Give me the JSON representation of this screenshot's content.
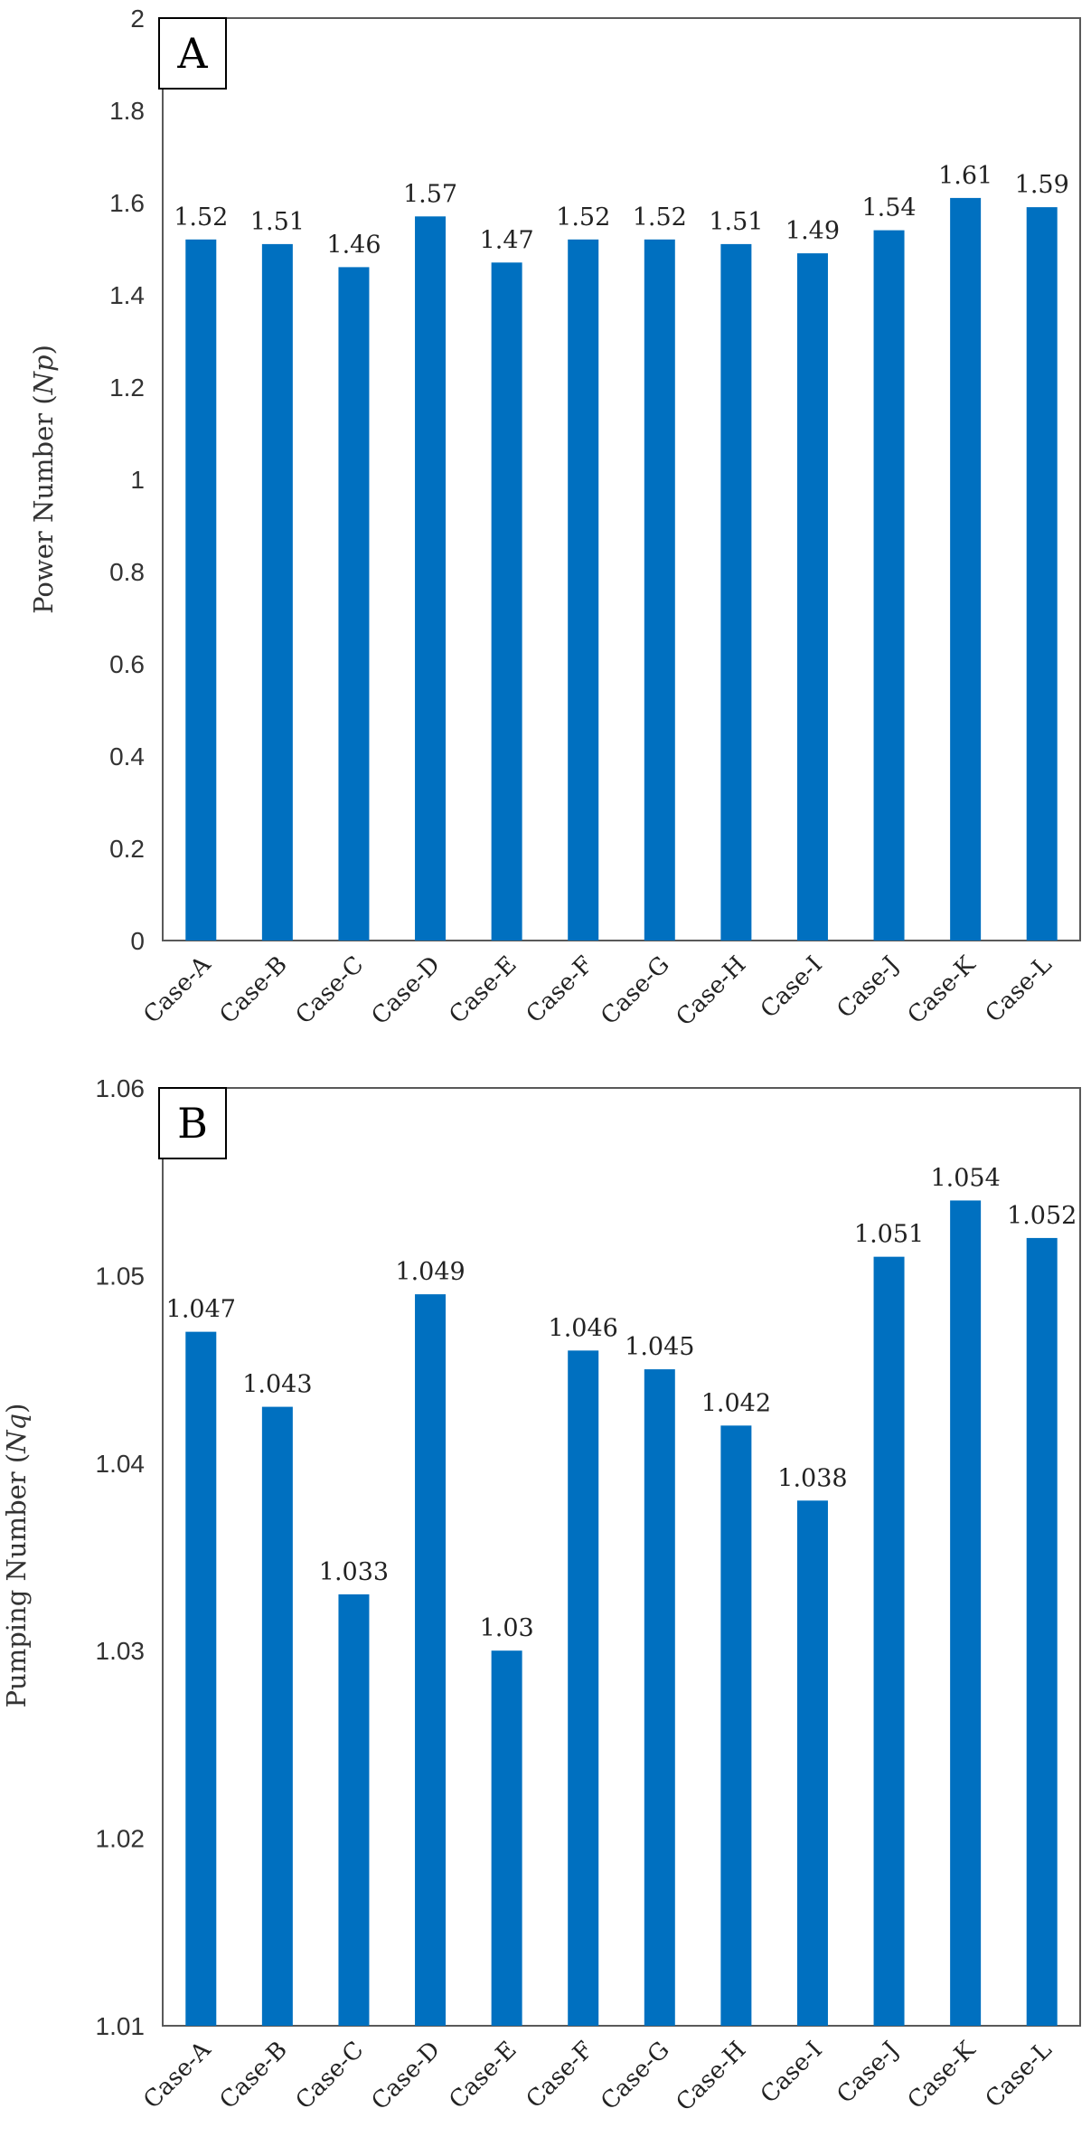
{
  "colors": {
    "bar": "#0070C0",
    "frame": "#595959",
    "background": "#FFFFFF"
  },
  "chart_data": [
    {
      "type": "bar",
      "panel": "A",
      "title": "",
      "xlabel": "",
      "ylabel": {
        "text": "Power Number (",
        "italic": "Np",
        "close": ")"
      },
      "ylim": [
        0,
        2
      ],
      "yticks": [
        "0",
        "0.2",
        "0.4",
        "0.6",
        "0.8",
        "1",
        "1.2",
        "1.4",
        "1.6",
        "1.8",
        "2"
      ],
      "categories": [
        "Case-A",
        "Case-B",
        "Case-C",
        "Case-D",
        "Case-E",
        "Case-F",
        "Case-G",
        "Case-H",
        "Case-I",
        "Case-J",
        "Case-K",
        "Case-L"
      ],
      "values": [
        1.52,
        1.51,
        1.46,
        1.57,
        1.47,
        1.52,
        1.52,
        1.51,
        1.49,
        1.54,
        1.61,
        1.59
      ],
      "labels": [
        "1.52",
        "1.51",
        "1.46",
        "1.57",
        "1.47",
        "1.52",
        "1.52",
        "1.51",
        "1.49",
        "1.54",
        "1.61",
        "1.59"
      ],
      "grid": false,
      "legend": "none"
    },
    {
      "type": "bar",
      "panel": "B",
      "title": "",
      "xlabel": "",
      "ylabel": {
        "text": "Pumping Number (",
        "italic": "Nq",
        "close": ")"
      },
      "ylim": [
        1.01,
        1.06
      ],
      "yticks": [
        "1.01",
        "1.02",
        "1.03",
        "1.04",
        "1.05",
        "1.06"
      ],
      "categories": [
        "Case-A",
        "Case-B",
        "Case-C",
        "Case-D",
        "Case-E",
        "Case-F",
        "Case-G",
        "Case-H",
        "Case-I",
        "Case-J",
        "Case-K",
        "Case-L"
      ],
      "values": [
        1.047,
        1.043,
        1.033,
        1.049,
        1.03,
        1.046,
        1.045,
        1.042,
        1.038,
        1.051,
        1.054,
        1.052
      ],
      "labels": [
        "1.047",
        "1.043",
        "1.033",
        "1.049",
        "1.03",
        "1.046",
        "1.045",
        "1.042",
        "1.038",
        "1.051",
        "1.054",
        "1.052"
      ],
      "grid": false,
      "legend": "none"
    }
  ]
}
